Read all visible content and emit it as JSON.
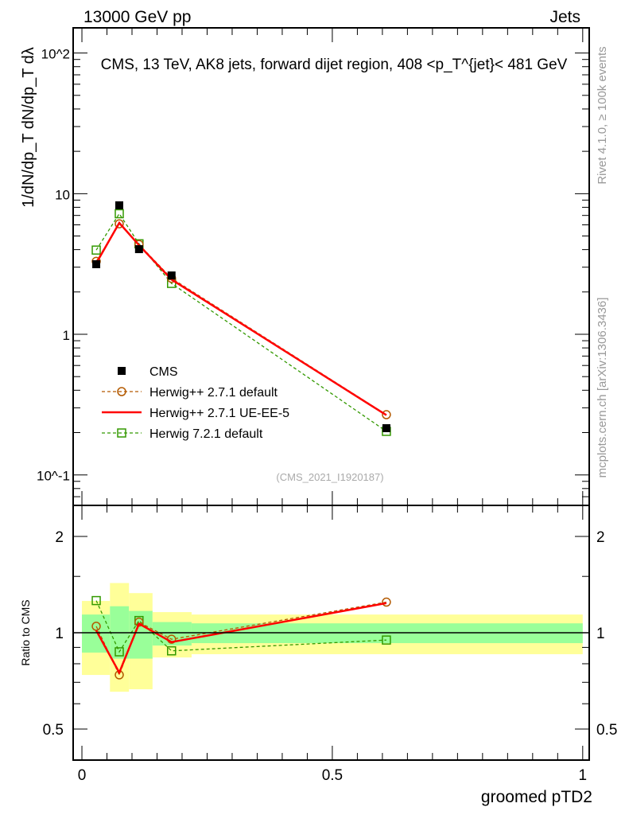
{
  "header": {
    "left": "13000 GeV pp",
    "right": "Jets"
  },
  "side_labels": {
    "rivet": "Rivet 4.1.0, ≥ 100k events",
    "mcplots": "mcplots.cern.ch [arXiv:1306.3436]"
  },
  "chart_data": [
    {
      "type": "line",
      "title": "CMS, 13 TeV, AK8 jets, forward dijet region, 408 <p_T^{jet}< 481 GeV",
      "ylabel": "1/dN/dp_T dN/dp_T dλ",
      "yscale": "log",
      "ylim": [
        0.0607,
        151
      ],
      "xlim": [
        -0.0175,
        1.013
      ],
      "ytick_labels": [
        "10^-1",
        "1",
        "10",
        "10^2"
      ],
      "annotation": "(CMS_2021_I1920187)",
      "legend": {
        "placement": "bottom-left"
      },
      "x": [
        0.0286,
        0.0746,
        0.114,
        0.179,
        0.608
      ],
      "series": [
        {
          "name": "CMS",
          "style": "marker",
          "color": "#000000",
          "values": [
            3.15,
            8.26,
            4.03,
            2.62,
            0.215
          ]
        },
        {
          "name": "Herwig++ 2.7.1 default",
          "style": "dashed-circle",
          "color": "#b35900",
          "values": [
            3.3,
            6.1,
            4.35,
            2.5,
            0.268
          ]
        },
        {
          "name": "Herwig++ 2.7.1 UE-EE-5",
          "style": "solid",
          "color": "#ff0000",
          "values": [
            3.2,
            6.2,
            4.3,
            2.45,
            0.266
          ]
        },
        {
          "name": "Herwig 7.2.1 default",
          "style": "dashed-square",
          "color": "#339900",
          "values": [
            3.97,
            7.2,
            4.4,
            2.3,
            0.204
          ]
        }
      ]
    },
    {
      "type": "line",
      "ylabel": "Ratio to CMS",
      "xlabel": "groomed pTD2",
      "yscale": "log",
      "ylim": [
        0.4,
        2.5
      ],
      "ytick_labels": [
        "0.5",
        "1",
        "2"
      ],
      "xtick_labels": [
        "0",
        "0.5",
        "1"
      ],
      "bins": [
        [
          0,
          0.056
        ],
        [
          0.056,
          0.094
        ],
        [
          0.094,
          0.141
        ],
        [
          0.141,
          0.219
        ],
        [
          0.219,
          1.0
        ]
      ],
      "band_total": [
        [
          0.738,
          1.257
        ],
        [
          0.654,
          1.43
        ],
        [
          0.666,
          1.33
        ],
        [
          0.837,
          1.16
        ],
        [
          0.857,
          1.14
        ]
      ],
      "band_stat": [
        [
          0.867,
          1.14
        ],
        [
          0.83,
          1.21
        ],
        [
          0.83,
          1.17
        ],
        [
          0.912,
          1.08
        ],
        [
          0.928,
          1.07
        ]
      ],
      "colors": {
        "total": "#ffff99",
        "stat": "#99ff99"
      }
    }
  ]
}
